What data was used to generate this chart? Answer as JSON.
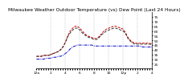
{
  "title": "Milwaukee Weather Outdoor Temperature (vs) Dew Point (Last 24 Hours)",
  "background_color": "#ffffff",
  "plot_bg_color": "#ffffff",
  "grid_color": "#999999",
  "ylim": [
    20,
    80
  ],
  "yticks": [
    25,
    30,
    35,
    40,
    45,
    50,
    55,
    60,
    65,
    70,
    75
  ],
  "n_points": 49,
  "temp_color": "#cc0000",
  "dewpoint_color": "#0000cc",
  "heatindex_color": "#111111",
  "temp_values": [
    33,
    33,
    33,
    34,
    34,
    34,
    35,
    36,
    37,
    38,
    40,
    43,
    48,
    55,
    60,
    63,
    65,
    65,
    63,
    60,
    57,
    55,
    54,
    53,
    52,
    52,
    54,
    57,
    60,
    62,
    63,
    64,
    65,
    65,
    64,
    63,
    62,
    58,
    53,
    50,
    48,
    47,
    47,
    47,
    47,
    47,
    47,
    47,
    46
  ],
  "dewpoint_values": [
    30,
    30,
    30,
    30,
    31,
    31,
    31,
    32,
    32,
    33,
    33,
    34,
    36,
    38,
    41,
    43,
    44,
    45,
    45,
    45,
    45,
    45,
    45,
    45,
    44,
    44,
    44,
    44,
    44,
    44,
    44,
    44,
    44,
    44,
    44,
    44,
    44,
    44,
    44,
    44,
    44,
    44,
    44,
    44,
    43,
    43,
    43,
    43,
    43
  ],
  "heatindex_values": [
    33,
    33,
    33,
    34,
    34,
    34,
    35,
    36,
    37,
    38,
    40,
    43,
    48,
    54,
    58,
    61,
    63,
    63,
    61,
    58,
    56,
    54,
    53,
    52,
    51,
    51,
    53,
    56,
    58,
    60,
    61,
    62,
    63,
    63,
    62,
    61,
    60,
    57,
    52,
    49,
    47,
    46,
    46,
    46,
    46,
    46,
    46,
    46,
    45
  ],
  "x_tick_labels": [
    "12a",
    "",
    "",
    "",
    "",
    "",
    "2",
    "",
    "",
    "",
    "",
    "",
    "4",
    "",
    "",
    "",
    "",
    "",
    "6",
    "",
    "",
    "",
    "",
    "",
    "8",
    "",
    "",
    "",
    "",
    "",
    "10",
    "",
    "",
    "",
    "",
    "",
    "12p",
    "",
    "",
    "",
    "",
    "",
    "2",
    "",
    "",
    "",
    "",
    "",
    "4"
  ],
  "title_fontsize": 4.2,
  "tick_fontsize": 3.2,
  "linewidth": 0.7
}
